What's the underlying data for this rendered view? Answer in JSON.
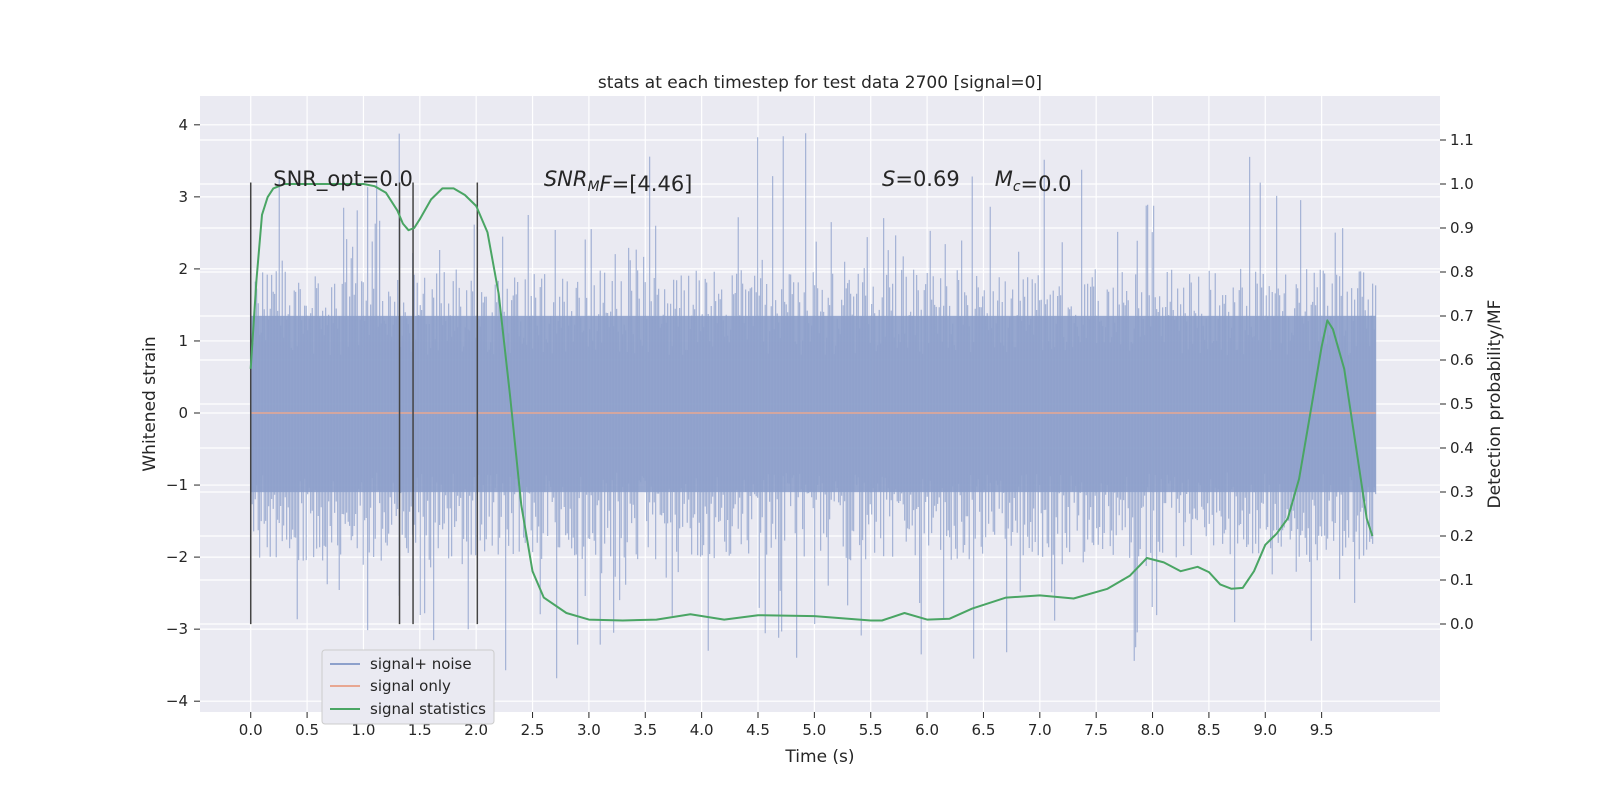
{
  "chart_data": {
    "type": "line",
    "title": "stats at each timestep for test data 2700 [signal=0]",
    "xlabel": "Time (s)",
    "ylabel": "Whitened strain",
    "ylabel_right": "Detection probability/MF",
    "xlim": [
      -0.45,
      10.55
    ],
    "ylim": [
      -4.15,
      4.4
    ],
    "ylim_right": [
      -0.2,
      1.2
    ],
    "x_ticks": [
      0.0,
      0.5,
      1.0,
      1.5,
      2.0,
      2.5,
      3.0,
      3.5,
      4.0,
      4.5,
      5.0,
      5.5,
      6.0,
      6.5,
      7.0,
      7.5,
      8.0,
      8.5,
      9.0,
      9.5
    ],
    "x_tick_labels": [
      "0.0",
      "0.5",
      "1.0",
      "1.5",
      "2.0",
      "2.5",
      "3.0",
      "3.5",
      "4.0",
      "4.5",
      "5.0",
      "5.5",
      "6.0",
      "6.5",
      "7.0",
      "7.5",
      "8.0",
      "8.5",
      "9.0",
      "9.5"
    ],
    "y_ticks": [
      -4,
      -3,
      -2,
      -1,
      0,
      1,
      2,
      3,
      4
    ],
    "y_tick_labels": [
      "−4",
      "−3",
      "−2",
      "−1",
      "0",
      "1",
      "2",
      "3",
      "4"
    ],
    "y_right_ticks": [
      0.0,
      0.1,
      0.2,
      0.3,
      0.4,
      0.5,
      0.6,
      0.7,
      0.8,
      0.9,
      1.0,
      1.1
    ],
    "y_right_tick_labels": [
      "0.0",
      "0.1",
      "0.2",
      "0.3",
      "0.4",
      "0.5",
      "0.6",
      "0.7",
      "0.8",
      "0.9",
      "1.0",
      "1.1"
    ],
    "grid": true,
    "legend_position": "lower-left",
    "annotations": [
      {
        "x": 0.2,
        "y": 3.15,
        "parts": [
          {
            "text": "SNR_opt=0.0",
            "italic": false
          }
        ]
      },
      {
        "x": 2.6,
        "y": 3.15,
        "parts": [
          {
            "text": "SNR",
            "italic": true
          },
          {
            "text": "M",
            "italic": true,
            "sub": true
          },
          {
            "text": "F",
            "italic": true
          },
          {
            "text": "=[4.46]",
            "italic": false
          }
        ]
      },
      {
        "x": 5.6,
        "y": 3.15,
        "parts": [
          {
            "text": "S",
            "italic": true
          },
          {
            "text": "=0.69",
            "italic": false
          }
        ]
      },
      {
        "x": 6.6,
        "y": 3.15,
        "parts": [
          {
            "text": "M",
            "italic": true
          },
          {
            "text": "c",
            "italic": true,
            "sub": true
          },
          {
            "text": "=0.0",
            "italic": false
          }
        ]
      }
    ],
    "vertical_markers": {
      "x": [
        0.0,
        1.32,
        1.44,
        2.01
      ],
      "y_range": [
        -2.93,
        3.2
      ],
      "color": "#444444"
    },
    "noise_envelope": {
      "x_range": [
        0.0,
        9.98
      ],
      "core_band": [
        -1.1,
        1.35
      ],
      "mid_band": [
        -2.05,
        2.0
      ],
      "peak_range": [
        -3.8,
        4.05
      ]
    },
    "series": [
      {
        "name": "signal+ noise",
        "axis": "left",
        "color": "#8da0cb",
        "x_range": [
          0.0,
          9.98
        ],
        "y_range": [
          -3.8,
          4.05
        ]
      },
      {
        "name": "signal only",
        "axis": "left",
        "color": "#e8a792",
        "x": [
          0.0,
          9.98
        ],
        "y": [
          0.0,
          0.0
        ]
      },
      {
        "name": "signal statistics",
        "axis": "right",
        "color": "#4aa564",
        "x": [
          0.0,
          0.05,
          0.1,
          0.15,
          0.2,
          0.3,
          0.5,
          0.8,
          1.0,
          1.1,
          1.2,
          1.3,
          1.35,
          1.4,
          1.45,
          1.5,
          1.6,
          1.7,
          1.8,
          1.9,
          2.0,
          2.1,
          2.2,
          2.3,
          2.4,
          2.5,
          2.6,
          2.8,
          3.0,
          3.3,
          3.6,
          3.9,
          4.2,
          4.5,
          5.0,
          5.5,
          5.6,
          5.8,
          6.0,
          6.2,
          6.4,
          6.7,
          7.0,
          7.3,
          7.6,
          7.8,
          7.95,
          8.1,
          8.25,
          8.4,
          8.5,
          8.6,
          8.7,
          8.8,
          8.9,
          9.0,
          9.1,
          9.2,
          9.3,
          9.4,
          9.5,
          9.55,
          9.6,
          9.7,
          9.8,
          9.9,
          9.95
        ],
        "y": [
          0.58,
          0.78,
          0.93,
          0.97,
          0.99,
          1.0,
          1.0,
          1.0,
          1.0,
          0.995,
          0.98,
          0.94,
          0.91,
          0.895,
          0.9,
          0.92,
          0.965,
          0.99,
          0.99,
          0.975,
          0.95,
          0.89,
          0.75,
          0.52,
          0.27,
          0.12,
          0.06,
          0.025,
          0.01,
          0.008,
          0.01,
          0.022,
          0.01,
          0.02,
          0.018,
          0.008,
          0.008,
          0.025,
          0.01,
          0.012,
          0.035,
          0.06,
          0.065,
          0.058,
          0.08,
          0.11,
          0.15,
          0.14,
          0.12,
          0.13,
          0.118,
          0.09,
          0.08,
          0.082,
          0.12,
          0.18,
          0.205,
          0.24,
          0.33,
          0.48,
          0.63,
          0.69,
          0.67,
          0.58,
          0.41,
          0.24,
          0.2
        ]
      }
    ]
  }
}
